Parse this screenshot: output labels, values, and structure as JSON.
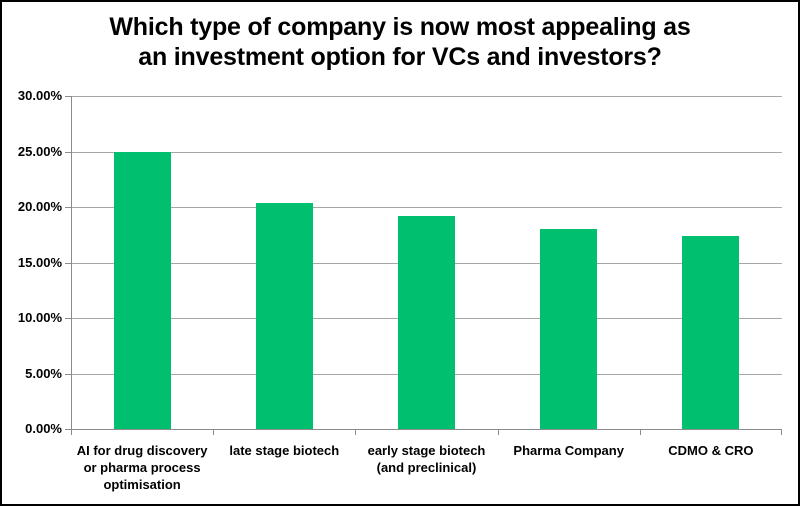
{
  "chart_data": {
    "type": "bar",
    "title": "Which type of company is now most appealing as an investment option for VCs and investors?",
    "title_lines": [
      "Which type of company is now most appealing as",
      "an investment option for VCs and investors?"
    ],
    "categories": [
      "AI for drug discovery or pharma process optimisation",
      "late stage biotech",
      "early stage biotech (and preclinical)",
      "Pharma Company",
      "CDMO & CRO"
    ],
    "category_label_lines": [
      [
        "AI for drug discovery",
        "or pharma process",
        "optimisation"
      ],
      [
        "late stage biotech"
      ],
      [
        "early stage biotech",
        "(and preclinical)"
      ],
      [
        "Pharma Company"
      ],
      [
        "CDMO & CRO"
      ]
    ],
    "values": [
      25.0,
      20.4,
      19.2,
      18.0,
      17.4
    ],
    "unit": "%",
    "xlabel": "",
    "ylabel": "",
    "ylim": [
      0,
      30
    ],
    "y_ticks": [
      0,
      5,
      10,
      15,
      20,
      25,
      30
    ],
    "y_tick_labels": [
      "0.00%",
      "5.00%",
      "10.00%",
      "15.00%",
      "20.00%",
      "25.00%",
      "30.00%"
    ],
    "legend": "none",
    "grid": true,
    "colors": {
      "bar": "#00BF6F",
      "gridline": "#A6A6A6",
      "axis": "#8C8C8C",
      "text": "#000000",
      "background": "#FFFFFF",
      "border": "#000000"
    }
  }
}
